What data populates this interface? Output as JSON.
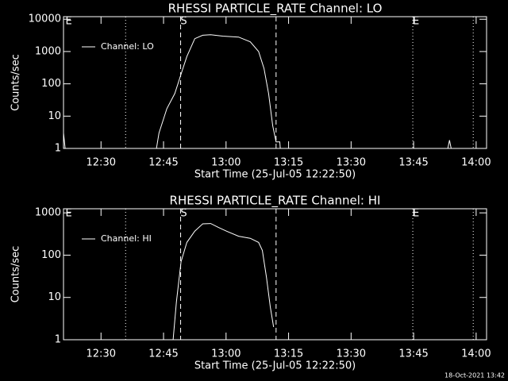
{
  "chart_data": [
    {
      "type": "line",
      "title": "RHESSI PARTICLE_RATE Channel: LO",
      "xlabel": "Start Time (25-Jul-05 12:22:50)",
      "ylabel": "Counts/sec",
      "ylog": true,
      "ylim": [
        1,
        12000
      ],
      "yticks": [
        1,
        10,
        100,
        1000,
        10000
      ],
      "xlim": [
        741,
        842.5
      ],
      "xticks": [
        {
          "value": 750,
          "label": "12:30"
        },
        {
          "value": 765,
          "label": "12:45"
        },
        {
          "value": 780,
          "label": "13:00"
        },
        {
          "value": 795,
          "label": "13:15"
        },
        {
          "value": 810,
          "label": "13:30"
        },
        {
          "value": 825,
          "label": "13:45"
        },
        {
          "value": 840,
          "label": "14:00"
        }
      ],
      "vlines": [
        {
          "x": 755.9,
          "style": "dotted"
        },
        {
          "x": 769.1,
          "style": "dashed"
        },
        {
          "x": 792,
          "style": "dashed"
        },
        {
          "x": 824.8,
          "style": "dotted"
        },
        {
          "x": 839.3,
          "style": "dotted"
        }
      ],
      "flags": [
        {
          "x": 741.5,
          "label": "E"
        },
        {
          "x": 769.1,
          "label": "S"
        },
        {
          "x": 824.8,
          "label": "E"
        }
      ],
      "series": [
        {
          "name": "Channel: LO",
          "color": "#ffffff",
          "x": [
            741,
            741.4,
            763.3,
            763.9,
            765.8,
            767.7,
            769.2,
            770.6,
            772.5,
            774.4,
            776.3,
            779.2,
            783,
            785.8,
            787.8,
            789.1,
            790.2,
            791.2,
            792,
            792.9,
            793,
            833.2,
            833.6,
            834,
            842.5
          ],
          "values": [
            3,
            1,
            1,
            3,
            17,
            50,
            200,
            700,
            2500,
            3200,
            3300,
            3000,
            2800,
            2000,
            1000,
            300,
            50,
            5,
            1.6,
            1.6,
            1,
            1,
            1.8,
            1,
            1
          ]
        }
      ]
    },
    {
      "type": "line",
      "title": "RHESSI PARTICLE_RATE Channel: HI",
      "xlabel": "Start Time (25-Jul-05 12:22:50)",
      "ylabel": "Counts/sec",
      "ylog": true,
      "ylim": [
        1,
        1250
      ],
      "yticks": [
        1,
        10,
        100,
        1000
      ],
      "xlim": [
        741,
        842.5
      ],
      "xticks": [
        {
          "value": 750,
          "label": "12:30"
        },
        {
          "value": 765,
          "label": "12:45"
        },
        {
          "value": 780,
          "label": "13:00"
        },
        {
          "value": 795,
          "label": "13:15"
        },
        {
          "value": 810,
          "label": "13:30"
        },
        {
          "value": 825,
          "label": "13:45"
        },
        {
          "value": 840,
          "label": "14:00"
        }
      ],
      "vlines": [
        {
          "x": 755.9,
          "style": "dotted"
        },
        {
          "x": 769.1,
          "style": "dashed"
        },
        {
          "x": 792,
          "style": "dashed"
        },
        {
          "x": 824.8,
          "style": "dotted"
        },
        {
          "x": 839.3,
          "style": "dotted"
        }
      ],
      "flags": [
        {
          "x": 741.5,
          "label": "E"
        },
        {
          "x": 769.1,
          "label": "S"
        },
        {
          "x": 824.8,
          "label": "E"
        }
      ],
      "series": [
        {
          "name": "Channel: HI",
          "color": "#ffffff",
          "x": [
            767.3,
            768.1,
            769.2,
            770.6,
            772.5,
            774.4,
            776.3,
            778.2,
            780.1,
            783,
            785.8,
            787.8,
            788.7,
            789.7,
            790.6,
            791.4
          ],
          "values": [
            1,
            8,
            70,
            200,
            370,
            550,
            560,
            450,
            370,
            280,
            250,
            200,
            130,
            30,
            6,
            2
          ]
        }
      ]
    }
  ],
  "footer": "18-Oct-2021 13:42"
}
